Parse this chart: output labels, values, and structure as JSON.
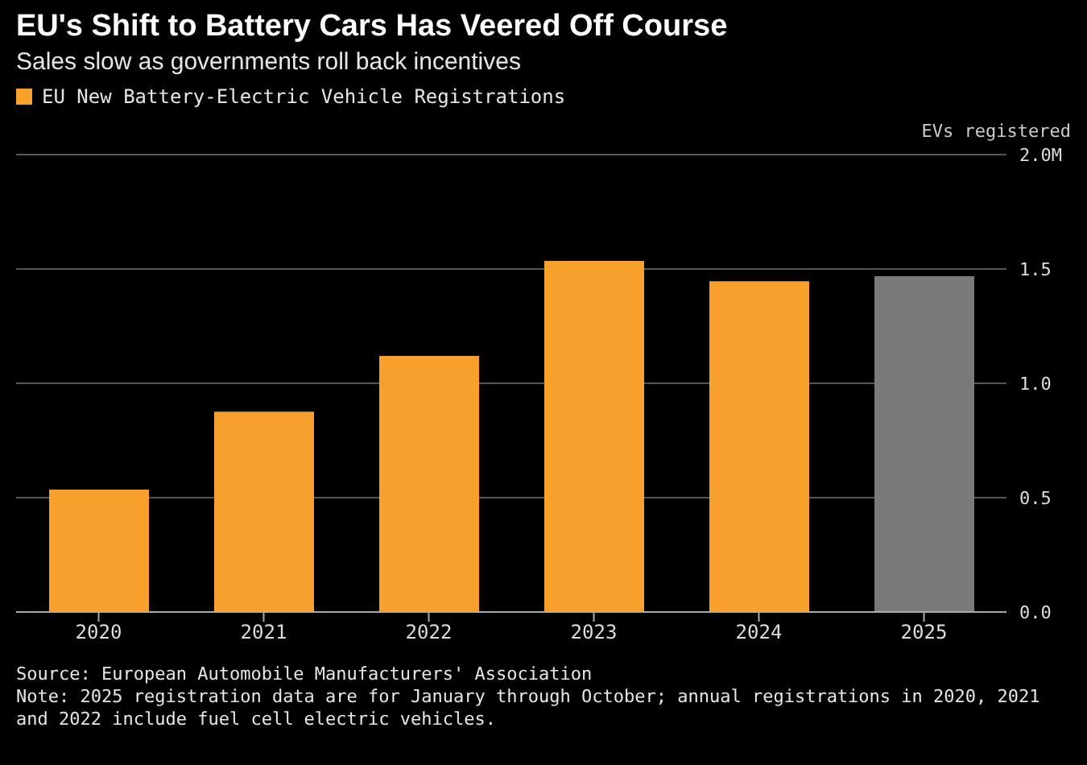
{
  "chart_data": {
    "type": "bar",
    "title": "EU's Shift to Battery Cars Has Veered Off Course",
    "subtitle": "Sales slow as governments roll back incentives",
    "ylabel": "EVs registered",
    "categories": [
      "2020",
      "2021",
      "2022",
      "2023",
      "2024",
      "2025"
    ],
    "series": [
      {
        "name": "EU New Battery-Electric Vehicle Registrations",
        "color": "#f7a12c",
        "values": [
          0.535,
          0.876,
          1.12,
          1.535,
          1.446,
          1.468
        ],
        "colors": [
          "#f7a12c",
          "#f7a12c",
          "#f7a12c",
          "#f7a12c",
          "#f7a12c",
          "#7a7a7a"
        ]
      }
    ],
    "ylim": [
      0,
      2
    ],
    "yticks": [
      {
        "value": 0,
        "label": "0.0"
      },
      {
        "value": 0.5,
        "label": "0.5"
      },
      {
        "value": 1,
        "label": "1.0"
      },
      {
        "value": 1.5,
        "label": "1.5"
      },
      {
        "value": 2,
        "label": "2.0M"
      }
    ],
    "grid": "y",
    "legend": "top left",
    "annotations": [
      "Source: European Automobile Manufacturers' Association",
      "Note: 2025 registration data are for January through October; annual registrations in 2020, 2021 and 2022 include fuel cell electric vehicles."
    ]
  }
}
